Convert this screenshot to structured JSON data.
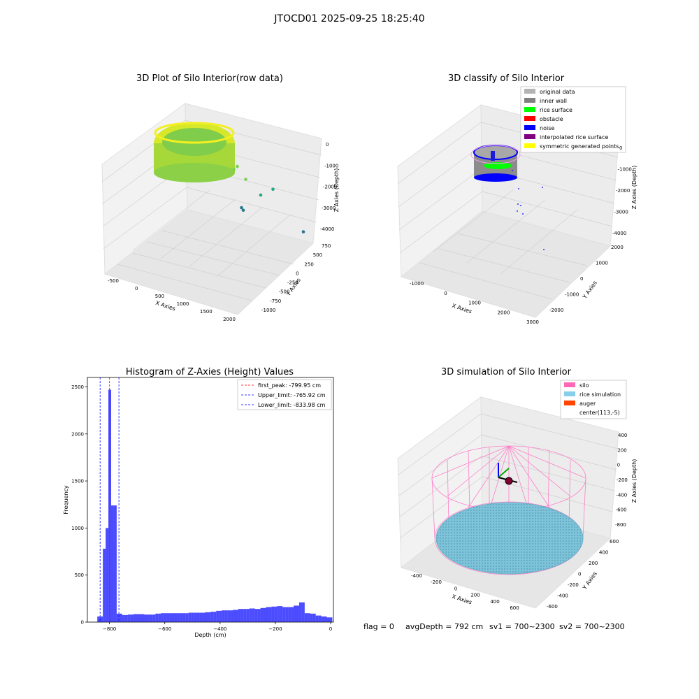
{
  "suptitle": "JTOCD01 2025-09-25 18:25:40",
  "footer": {
    "flag": "flag = 0",
    "avg_depth": "avgDepth = 792 cm",
    "sv1": "sv1 = 700~2300",
    "sv2": "sv2 = 700~2300"
  },
  "chart_data": [
    {
      "type": "scatter",
      "title": "3D Plot of Silo Interior(row data)",
      "xlabel": "X Axies",
      "ylabel": "Y Axies",
      "zlabel": "Z Axies (Depth)",
      "x_ticks": [
        "-500",
        "0",
        "500",
        "1000",
        "1500",
        "2000"
      ],
      "y_ticks": [
        "-1000",
        "-750",
        "-500",
        "-250",
        "0",
        "250",
        "500",
        "750"
      ],
      "z_ticks": [
        "-4000",
        "-3000",
        "-2000",
        "-1000",
        "0"
      ],
      "colormap": [
        "#fde725",
        "#7ad151",
        "#22a884",
        "#2a788e",
        "#414487"
      ],
      "points": [
        {
          "x": 1900,
          "y": -900,
          "z": -3900
        },
        {
          "x": 1450,
          "y": -300,
          "z": -2100
        },
        {
          "x": 1100,
          "y": -650,
          "z": -2700
        },
        {
          "x": 1050,
          "y": 250,
          "z": -1600
        },
        {
          "x": 900,
          "y": -100,
          "z": -3100
        },
        {
          "x": 850,
          "y": -150,
          "z": -3050
        },
        {
          "x": 780,
          "y": 150,
          "z": -1400
        },
        {
          "x": 950,
          "y": 500,
          "z": -1000
        }
      ]
    },
    {
      "type": "scatter",
      "title": "3D classify of Silo Interior",
      "xlabel": "X Axies",
      "ylabel": "Y Axies",
      "zlabel": "Z Axies (Depth)",
      "x_ticks": [
        "-1000",
        "0",
        "1000",
        "2000",
        "3000"
      ],
      "y_ticks": [
        "-2000",
        "-1000",
        "0",
        "1000",
        "2000"
      ],
      "z_ticks": [
        "-4000",
        "-3000",
        "-2000",
        "-1000",
        "0"
      ],
      "legend": [
        {
          "label": "original data",
          "color": "#b3b3b3"
        },
        {
          "label": "inner wall",
          "color": "#808080"
        },
        {
          "label": "rice surface",
          "color": "#00ff00"
        },
        {
          "label": "obstacle",
          "color": "#ff0000"
        },
        {
          "label": "noise",
          "color": "#0000ff"
        },
        {
          "label": "interpolated rice surface",
          "color": "#800080"
        },
        {
          "label": "symmetric generated points",
          "color": "#ffff00"
        }
      ],
      "legend_position": "top-right"
    },
    {
      "type": "bar",
      "title": "Histogram of Z-Axies (Height) Values",
      "xlabel": "Depth (cm)",
      "ylabel": "Frequency",
      "xlim": [
        -880,
        10
      ],
      "ylim": [
        0,
        2600
      ],
      "x_ticks": [
        -800,
        -600,
        -400,
        -200,
        0
      ],
      "y_ticks": [
        0,
        500,
        1000,
        1500,
        2000,
        2500
      ],
      "bar_color": "#0000ff",
      "bin_width": 10,
      "bin_left_edges": [
        -844,
        -834,
        -824,
        -814,
        -804,
        -794,
        -784,
        -774,
        -764,
        -754,
        -744,
        -734,
        -724,
        -714,
        -704,
        -694,
        -684,
        -674,
        -664,
        -654,
        -644,
        -634,
        -624,
        -614,
        -604,
        -594,
        -584,
        -574,
        -564,
        -554,
        -544,
        -534,
        -524,
        -514,
        -504,
        -494,
        -484,
        -474,
        -464,
        -454,
        -444,
        -434,
        -424,
        -414,
        -404,
        -394,
        -384,
        -374,
        -364,
        -354,
        -344,
        -334,
        -324,
        -314,
        -304,
        -294,
        -284,
        -274,
        -264,
        -254,
        -244,
        -234,
        -224,
        -214,
        -204,
        -194,
        -184,
        -174,
        -164,
        -154,
        -144,
        -134,
        -124,
        -114,
        -104,
        -94,
        -84,
        -74,
        -64,
        -54,
        -44,
        -34,
        -24,
        -14,
        -4
      ],
      "values": [
        60,
        60,
        780,
        1000,
        2470,
        1240,
        1240,
        90,
        90,
        75,
        75,
        80,
        80,
        85,
        85,
        85,
        85,
        80,
        80,
        80,
        80,
        90,
        90,
        95,
        95,
        95,
        95,
        95,
        95,
        95,
        95,
        95,
        95,
        100,
        100,
        100,
        100,
        100,
        100,
        105,
        105,
        110,
        110,
        120,
        120,
        125,
        125,
        125,
        125,
        130,
        130,
        140,
        140,
        140,
        140,
        145,
        145,
        140,
        140,
        150,
        150,
        160,
        160,
        165,
        165,
        170,
        170,
        160,
        160,
        160,
        160,
        175,
        175,
        210,
        210,
        95,
        95,
        90,
        90,
        70,
        70,
        60,
        60,
        50,
        50
      ],
      "lines": [
        {
          "name": "first_peak: -799.95 cm",
          "value": -799.95,
          "color": "#ff0000"
        },
        {
          "name": "Upper_limit: -765.92 cm",
          "value": -765.92,
          "color": "#0000ff"
        },
        {
          "name": "Lower_limit: -833.98 cm",
          "value": -833.98,
          "color": "#0000ff"
        }
      ],
      "legend_position": "top-right"
    },
    {
      "type": "scatter",
      "title": "3D simulation of Silo Interior",
      "xlabel": "X Axies",
      "ylabel": "Y Axies",
      "zlabel": "Z Axies (Depth)",
      "x_ticks": [
        "-400",
        "-200",
        "0",
        "200",
        "400",
        "600"
      ],
      "y_ticks": [
        "-600",
        "-400",
        "-200",
        "0",
        "200",
        "400",
        "600"
      ],
      "z_ticks": [
        "-800",
        "-600",
        "-400",
        "-200",
        "0",
        "200",
        "400"
      ],
      "legend": [
        {
          "label": "silo",
          "color": "#ff69b4"
        },
        {
          "label": "rice simulation",
          "color": "#87ceeb"
        },
        {
          "label": "auger",
          "color": "#ff4500"
        },
        {
          "label": "center(113,-5)",
          "color": ""
        }
      ],
      "legend_position": "top-right"
    }
  ]
}
